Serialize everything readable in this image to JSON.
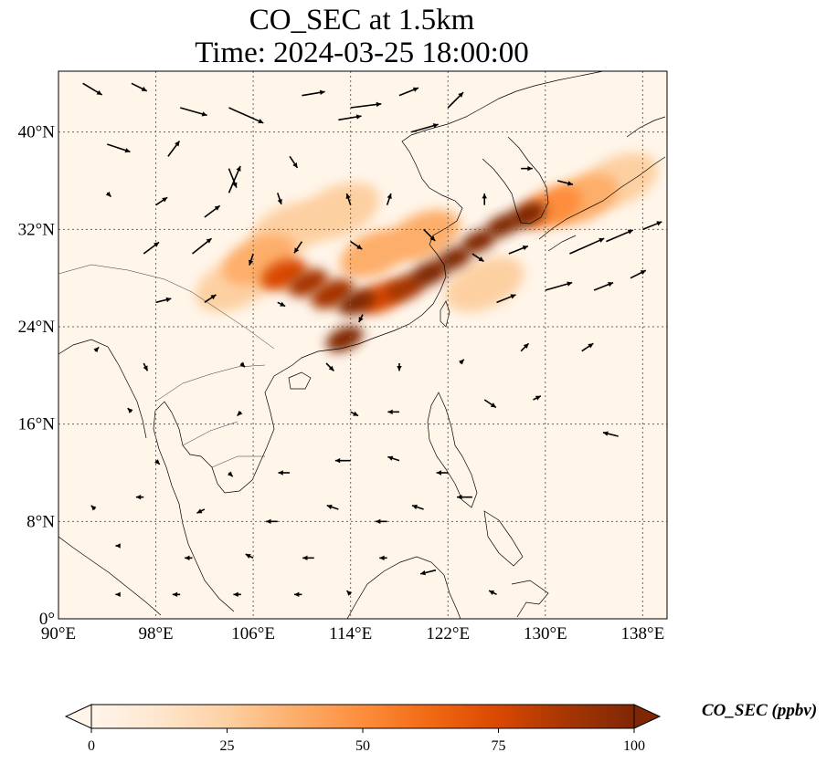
{
  "title": {
    "line1": "CO_SEC at 1.5km",
    "line2": "Time: 2024-03-25 18:00:00"
  },
  "map": {
    "lon_min": 90,
    "lon_max": 140,
    "lat_min": 0,
    "lat_max": 45,
    "lon_ticks": [
      {
        "value": 90,
        "label": "90°E"
      },
      {
        "value": 98,
        "label": "98°E"
      },
      {
        "value": 106,
        "label": "106°E"
      },
      {
        "value": 114,
        "label": "114°E"
      },
      {
        "value": 122,
        "label": "122°E"
      },
      {
        "value": 130,
        "label": "130°E"
      },
      {
        "value": 138,
        "label": "138°E"
      }
    ],
    "lat_ticks": [
      {
        "value": 0,
        "label": "0°"
      },
      {
        "value": 8,
        "label": "8°N"
      },
      {
        "value": 16,
        "label": "16°N"
      },
      {
        "value": 24,
        "label": "24°N"
      },
      {
        "value": 32,
        "label": "32°N"
      },
      {
        "value": 40,
        "label": "40°N"
      }
    ],
    "gridlines": true,
    "background_color": "#fff5e9",
    "coastline_color": "#000000"
  },
  "colorbar": {
    "label": "CO_SEC (ppbv)",
    "min": 0,
    "max": 100,
    "ticks": [
      {
        "value": 0,
        "label": "0"
      },
      {
        "value": 25,
        "label": "25"
      },
      {
        "value": 50,
        "label": "50"
      },
      {
        "value": 75,
        "label": "75"
      },
      {
        "value": 100,
        "label": "100"
      }
    ],
    "colors": [
      "#fff5eb",
      "#fee6ce",
      "#fdd0a2",
      "#fdae6b",
      "#fd8d3c",
      "#f16913",
      "#d94801",
      "#a63603",
      "#7f2704"
    ],
    "extend": "both"
  },
  "plume": [
    {
      "lon": 108.5,
      "lat": 28.3,
      "value": 80
    },
    {
      "lon": 110.5,
      "lat": 27.6,
      "value": 90
    },
    {
      "lon": 112.5,
      "lat": 26.7,
      "value": 85
    },
    {
      "lon": 114.5,
      "lat": 26.0,
      "value": 95
    },
    {
      "lon": 116.5,
      "lat": 26.4,
      "value": 80
    },
    {
      "lon": 118.5,
      "lat": 27.2,
      "value": 90
    },
    {
      "lon": 120.5,
      "lat": 28.4,
      "value": 95
    },
    {
      "lon": 122.5,
      "lat": 29.6,
      "value": 100
    },
    {
      "lon": 124.5,
      "lat": 31.0,
      "value": 100
    },
    {
      "lon": 126.5,
      "lat": 32.3,
      "value": 100
    },
    {
      "lon": 128.5,
      "lat": 33.2,
      "value": 95
    },
    {
      "lon": 113.5,
      "lat": 23.0,
      "value": 95
    },
    {
      "lon": 130.5,
      "lat": 33.8,
      "value": 55
    },
    {
      "lon": 133.0,
      "lat": 34.5,
      "value": 35
    },
    {
      "lon": 106.5,
      "lat": 29.5,
      "value": 35
    },
    {
      "lon": 104.5,
      "lat": 27.5,
      "value": 25
    },
    {
      "lon": 109.0,
      "lat": 32.0,
      "value": 25
    },
    {
      "lon": 113.0,
      "lat": 33.5,
      "value": 20
    },
    {
      "lon": 116.0,
      "lat": 30.0,
      "value": 40
    },
    {
      "lon": 120.0,
      "lat": 31.5,
      "value": 35
    },
    {
      "lon": 125.0,
      "lat": 27.5,
      "value": 25
    },
    {
      "lon": 136.0,
      "lat": 36.0,
      "value": 25
    }
  ],
  "wind_vectors": [
    {
      "lon": 92,
      "lat": 44,
      "u": 5,
      "v": -3
    },
    {
      "lon": 96,
      "lat": 44,
      "u": 4,
      "v": -2
    },
    {
      "lon": 100,
      "lat": 42,
      "u": 7,
      "v": -2
    },
    {
      "lon": 104,
      "lat": 42,
      "u": 9,
      "v": -4
    },
    {
      "lon": 110,
      "lat": 43,
      "u": 6,
      "v": 1
    },
    {
      "lon": 114,
      "lat": 42,
      "u": 8,
      "v": 1
    },
    {
      "lon": 118,
      "lat": 43,
      "u": 5,
      "v": 2
    },
    {
      "lon": 122,
      "lat": 42,
      "u": 4,
      "v": 4
    },
    {
      "lon": 94,
      "lat": 39,
      "u": 6,
      "v": -2
    },
    {
      "lon": 99,
      "lat": 38,
      "u": 3,
      "v": 4
    },
    {
      "lon": 104,
      "lat": 37,
      "u": 2,
      "v": -5
    },
    {
      "lon": 109,
      "lat": 38,
      "u": 2,
      "v": -3
    },
    {
      "lon": 113,
      "lat": 41,
      "u": 6,
      "v": 1
    },
    {
      "lon": 119,
      "lat": 40,
      "u": 7,
      "v": 2
    },
    {
      "lon": 94,
      "lat": 35,
      "u": 1,
      "v": -1
    },
    {
      "lon": 98,
      "lat": 34,
      "u": 3,
      "v": 2
    },
    {
      "lon": 102,
      "lat": 33,
      "u": 4,
      "v": 3
    },
    {
      "lon": 104,
      "lat": 35,
      "u": 3,
      "v": 7
    },
    {
      "lon": 108,
      "lat": 35,
      "u": 1,
      "v": -3
    },
    {
      "lon": 114,
      "lat": 34,
      "u": -1,
      "v": 3
    },
    {
      "lon": 117,
      "lat": 34,
      "u": 1,
      "v": 3
    },
    {
      "lon": 125,
      "lat": 34,
      "u": 0,
      "v": 3
    },
    {
      "lon": 128,
      "lat": 37,
      "u": 3,
      "v": 0
    },
    {
      "lon": 131,
      "lat": 36,
      "u": 4,
      "v": -1
    },
    {
      "lon": 97,
      "lat": 30,
      "u": 4,
      "v": 3
    },
    {
      "lon": 101,
      "lat": 30,
      "u": 5,
      "v": 4
    },
    {
      "lon": 106,
      "lat": 30,
      "u": -1,
      "v": -3
    },
    {
      "lon": 110,
      "lat": 31,
      "u": -2,
      "v": -3
    },
    {
      "lon": 114,
      "lat": 31,
      "u": 3,
      "v": -2
    },
    {
      "lon": 120,
      "lat": 32,
      "u": 3,
      "v": -3
    },
    {
      "lon": 124,
      "lat": 30,
      "u": 3,
      "v": -2
    },
    {
      "lon": 127,
      "lat": 30,
      "u": 5,
      "v": 2
    },
    {
      "lon": 132,
      "lat": 30,
      "u": 9,
      "v": 4
    },
    {
      "lon": 135,
      "lat": 31,
      "u": 7,
      "v": 3
    },
    {
      "lon": 138,
      "lat": 32,
      "u": 5,
      "v": 2
    },
    {
      "lon": 98,
      "lat": 26,
      "u": 4,
      "v": 1
    },
    {
      "lon": 102,
      "lat": 26,
      "u": 3,
      "v": 2
    },
    {
      "lon": 108,
      "lat": 26,
      "u": 2,
      "v": -1
    },
    {
      "lon": 115,
      "lat": 25,
      "u": -1,
      "v": -2
    },
    {
      "lon": 126,
      "lat": 26,
      "u": 5,
      "v": 2
    },
    {
      "lon": 130,
      "lat": 27,
      "u": 7,
      "v": 2
    },
    {
      "lon": 134,
      "lat": 27,
      "u": 5,
      "v": 2
    },
    {
      "lon": 137,
      "lat": 28,
      "u": 4,
      "v": 2
    },
    {
      "lon": 93,
      "lat": 22,
      "u": 1,
      "v": 1
    },
    {
      "lon": 97,
      "lat": 21,
      "u": 1,
      "v": -2
    },
    {
      "lon": 105,
      "lat": 21,
      "u": 1,
      "v": -1
    },
    {
      "lon": 112,
      "lat": 21,
      "u": 2,
      "v": -2
    },
    {
      "lon": 118,
      "lat": 21,
      "u": 0,
      "v": -2
    },
    {
      "lon": 123,
      "lat": 21,
      "u": 1,
      "v": 1
    },
    {
      "lon": 128,
      "lat": 22,
      "u": 2,
      "v": 2
    },
    {
      "lon": 133,
      "lat": 22,
      "u": 3,
      "v": 2
    },
    {
      "lon": 96,
      "lat": 17,
      "u": -1,
      "v": 1
    },
    {
      "lon": 105,
      "lat": 17,
      "u": -1,
      "v": -1
    },
    {
      "lon": 114,
      "lat": 17,
      "u": 2,
      "v": -1
    },
    {
      "lon": 118,
      "lat": 17,
      "u": -3,
      "v": 0
    },
    {
      "lon": 125,
      "lat": 18,
      "u": 3,
      "v": -2
    },
    {
      "lon": 129,
      "lat": 18,
      "u": 2,
      "v": 1
    },
    {
      "lon": 136,
      "lat": 15,
      "u": -4,
      "v": 1
    },
    {
      "lon": 98,
      "lat": 13,
      "u": 1,
      "v": -1
    },
    {
      "lon": 104,
      "lat": 12,
      "u": 1,
      "v": -1
    },
    {
      "lon": 109,
      "lat": 12,
      "u": -3,
      "v": 0
    },
    {
      "lon": 114,
      "lat": 13,
      "u": -4,
      "v": 0
    },
    {
      "lon": 118,
      "lat": 13,
      "u": -3,
      "v": 1
    },
    {
      "lon": 122,
      "lat": 12,
      "u": -3,
      "v": 0
    },
    {
      "lon": 124,
      "lat": 10,
      "u": -4,
      "v": 0
    },
    {
      "lon": 93,
      "lat": 9,
      "u": -1,
      "v": 1
    },
    {
      "lon": 97,
      "lat": 10,
      "u": -2,
      "v": 0
    },
    {
      "lon": 102,
      "lat": 9,
      "u": -2,
      "v": -1
    },
    {
      "lon": 108,
      "lat": 8,
      "u": -3,
      "v": 0
    },
    {
      "lon": 113,
      "lat": 9,
      "u": -3,
      "v": 1
    },
    {
      "lon": 117,
      "lat": 8,
      "u": -3,
      "v": 0
    },
    {
      "lon": 120,
      "lat": 9,
      "u": -3,
      "v": 1
    },
    {
      "lon": 95,
      "lat": 6,
      "u": -1,
      "v": 0
    },
    {
      "lon": 101,
      "lat": 5,
      "u": -2,
      "v": 0
    },
    {
      "lon": 106,
      "lat": 5,
      "u": -2,
      "v": 1
    },
    {
      "lon": 111,
      "lat": 5,
      "u": -3,
      "v": 0
    },
    {
      "lon": 117,
      "lat": 5,
      "u": -2,
      "v": 0
    },
    {
      "lon": 121,
      "lat": 4,
      "u": -4,
      "v": -1
    },
    {
      "lon": 95,
      "lat": 2,
      "u": -1,
      "v": 0
    },
    {
      "lon": 100,
      "lat": 2,
      "u": -2,
      "v": 0
    },
    {
      "lon": 105,
      "lat": 2,
      "u": -2,
      "v": 0
    },
    {
      "lon": 110,
      "lat": 2,
      "u": -2,
      "v": 0
    },
    {
      "lon": 114,
      "lat": 2,
      "u": -1,
      "v": 1
    },
    {
      "lon": 126,
      "lat": 2,
      "u": -2,
      "v": 1
    }
  ]
}
